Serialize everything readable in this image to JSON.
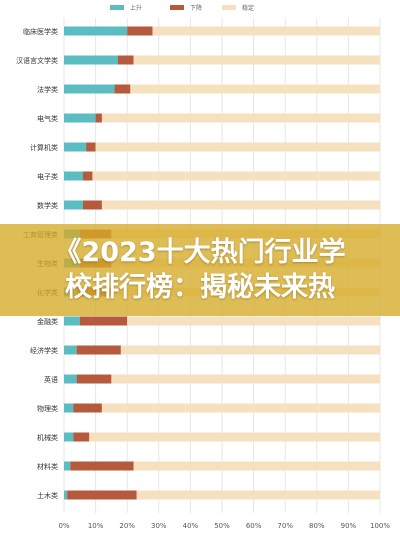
{
  "chart_data": {
    "type": "bar",
    "orientation": "horizontal",
    "stacked": true,
    "title": "",
    "xlabel": "",
    "ylabel": "",
    "xlim": [
      0,
      100
    ],
    "x_ticks": [
      "0%",
      "10%",
      "20%",
      "30%",
      "40%",
      "50%",
      "60%",
      "70%",
      "80%",
      "90%",
      "100%"
    ],
    "legend_position": "top-center",
    "grid": true,
    "categories": [
      "临床医学类",
      "汉语言文学类",
      "法学类",
      "电气类",
      "计算机类",
      "电子类",
      "数学类",
      "工商管理类",
      "生物类",
      "化学类",
      "金融类",
      "经济学类",
      "英语",
      "物理类",
      "机械类",
      "材料类",
      "土木类"
    ],
    "series": [
      {
        "name": "上升",
        "color": "#5bbcc2",
        "values": [
          20,
          17,
          16,
          10,
          7,
          6,
          6,
          5,
          5,
          4,
          5,
          4,
          4,
          3,
          3,
          2,
          1
        ]
      },
      {
        "name": "下降",
        "color": "#b55a3c",
        "values": [
          8,
          5,
          5,
          2,
          3,
          3,
          6,
          10,
          10,
          11,
          15,
          14,
          11,
          9,
          5,
          20,
          22
        ]
      },
      {
        "name": "稳定",
        "color": "#f5e1c0",
        "values": [
          72,
          78,
          79,
          88,
          90,
          91,
          88,
          85,
          85,
          85,
          80,
          82,
          85,
          88,
          92,
          78,
          77
        ]
      }
    ]
  },
  "overlay": {
    "line1": "《2023十大热门行业学",
    "line2": "校排行榜：揭秘未来热"
  }
}
